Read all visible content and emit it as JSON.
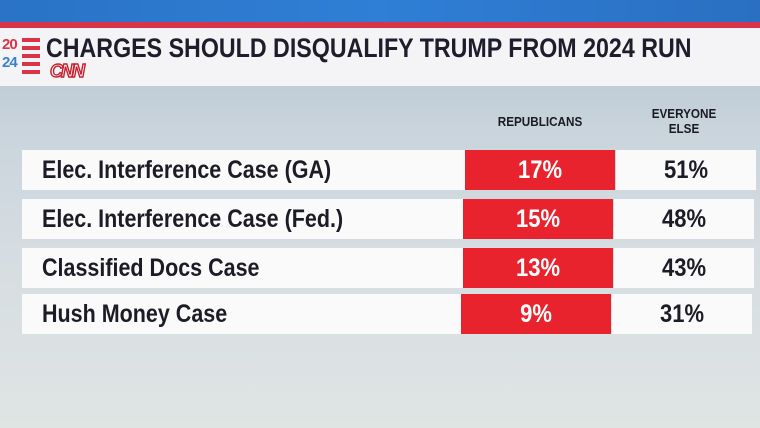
{
  "header": {
    "logo_year_top": "20",
    "logo_year_bottom": "24",
    "network": "CNN",
    "title": "CHARGES SHOULD DISQUALIFY TRUMP FROM 2024 RUN"
  },
  "colors": {
    "republicans": "#e8232e",
    "accent_red": "#d8344a",
    "accent_blue": "#2f7fd6"
  },
  "chart_data": {
    "type": "table",
    "title": "CHARGES SHOULD DISQUALIFY TRUMP FROM 2024 RUN",
    "columns": [
      "REPUBLICANS",
      "EVERYONE ELSE"
    ],
    "column_labels": {
      "republicans": "REPUBLICANS",
      "everyone_line1": "EVERYONE",
      "everyone_line2": "ELSE"
    },
    "rows": [
      {
        "label": "Elec. Interference Case (GA)",
        "republicans": "17%",
        "everyone_else": "51%"
      },
      {
        "label": "Elec. Interference Case (Fed.)",
        "republicans": "15%",
        "everyone_else": "48%"
      },
      {
        "label": "Classified Docs Case",
        "republicans": "13%",
        "everyone_else": "43%"
      },
      {
        "label": "Hush Money Case",
        "republicans": "9%",
        "everyone_else": "31%"
      }
    ],
    "series": [
      {
        "name": "REPUBLICANS",
        "values": [
          17,
          15,
          13,
          9
        ]
      },
      {
        "name": "EVERYONE ELSE",
        "values": [
          51,
          48,
          43,
          31
        ]
      }
    ],
    "unit": "%"
  }
}
